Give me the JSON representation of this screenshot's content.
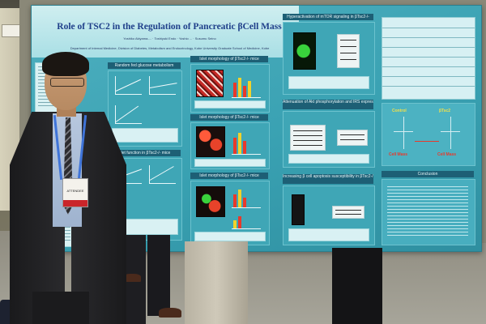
{
  "poster": {
    "title": "Role of TSC2 in the Regulation of Pancreatic βCell Mass",
    "authors": "Yoshiko Akiyama-... · Toshiyuki Endo · Yoshio ... · Susumu Seino",
    "department": "Department of Internal Medicine, Division of Diabetes, Metabolism and Endocrinology, Kobe University Graduate School of Medicine, Kobe",
    "sections": {
      "s1": "Random fed glucose metabolism",
      "s2": "Islet morphology of βTsc2-/- mice",
      "s3": "Islet morphology of βTsc2-/- mice",
      "s4": "Islet morphology of βTsc2-/- mice",
      "s5": "Islet function in βTsc2-/- mice",
      "s6": "Hyperactivation of mTOR signaling in βTsc2-/-",
      "s7": "Attenuation of Akt phosphorylation and IRS expression in βTsc2-/- mice",
      "s8": "Increasing β cell apoptosis susceptibility in βTsc2-/-",
      "s9": "Conclusion"
    },
    "diagram": {
      "left_label": "Control",
      "right_label": "βTsc2",
      "bottom_left": "Cell Mass",
      "bottom_right": "Cell Mass"
    }
  },
  "badge": {
    "text": "ATTENDEE"
  },
  "colors": {
    "poster_bg": "#39a1b2",
    "title_band": "#cfeef0",
    "title_text": "#1f3f8a",
    "section_header": "#1d5f75",
    "bar_red": "#e8392b",
    "bar_yellow": "#f2d22a",
    "lanyard": "#3f74d9"
  }
}
